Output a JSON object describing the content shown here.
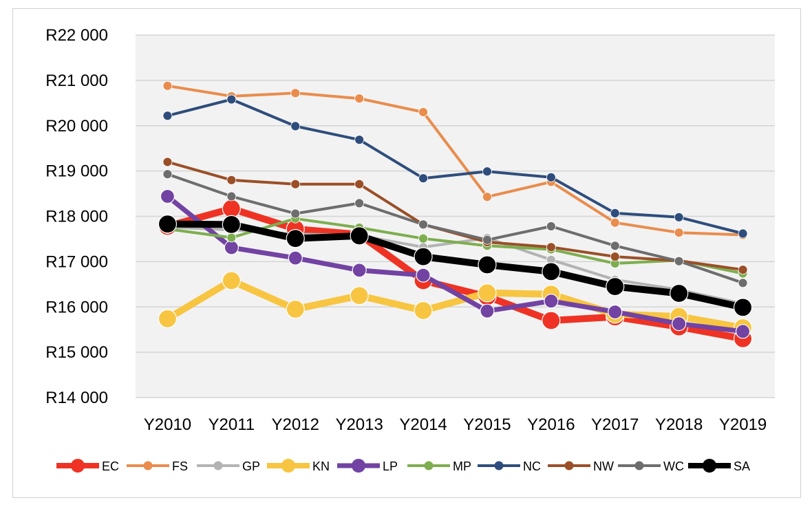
{
  "chart_data": {
    "type": "line",
    "title": "",
    "xlabel": "",
    "ylabel": "",
    "ylim": [
      14000,
      22000
    ],
    "yticks": [
      14000,
      15000,
      16000,
      17000,
      18000,
      19000,
      20000,
      21000,
      22000
    ],
    "ytick_labels": [
      "R14 000",
      "R15 000",
      "R16 000",
      "R17 000",
      "R18 000",
      "R19 000",
      "R20 000",
      "R21 000",
      "R22 000"
    ],
    "categories": [
      "Y2010",
      "Y2011",
      "Y2012",
      "Y2013",
      "Y2014",
      "Y2015",
      "Y2016",
      "Y2017",
      "Y2018",
      "Y2019"
    ],
    "grid": true,
    "legend_position": "bottom",
    "series": [
      {
        "name": "EC",
        "color": "#ee3324",
        "weight": "thick",
        "values": [
          17780,
          18170,
          17720,
          17600,
          16580,
          16230,
          15700,
          15780,
          15560,
          15300
        ]
      },
      {
        "name": "FS",
        "color": "#e98c4d",
        "weight": "thin",
        "values": [
          20880,
          20650,
          20720,
          20600,
          20300,
          18430,
          18760,
          17860,
          17640,
          17590
        ]
      },
      {
        "name": "GP",
        "color": "#b3b3b3",
        "weight": "thin",
        "values": [
          17760,
          17700,
          17610,
          17580,
          17320,
          17520,
          17040,
          16600,
          16380,
          16070
        ]
      },
      {
        "name": "KN",
        "color": "#f7c541",
        "weight": "thick",
        "values": [
          15740,
          16580,
          15950,
          16250,
          15920,
          16310,
          16280,
          15840,
          15790,
          15540
        ]
      },
      {
        "name": "LP",
        "color": "#7243a2",
        "weight": "mid",
        "values": [
          18440,
          17310,
          17080,
          16810,
          16700,
          15910,
          16130,
          15890,
          15630,
          15460
        ]
      },
      {
        "name": "MP",
        "color": "#7dae4f",
        "weight": "thin",
        "values": [
          17720,
          17530,
          17950,
          17750,
          17510,
          17350,
          17270,
          16960,
          17030,
          16740
        ]
      },
      {
        "name": "NC",
        "color": "#2e4d7c",
        "weight": "thin",
        "values": [
          20220,
          20580,
          19990,
          19690,
          18840,
          18990,
          18860,
          18070,
          17980,
          17620
        ]
      },
      {
        "name": "NW",
        "color": "#9a4f27",
        "weight": "thin",
        "values": [
          19200,
          18800,
          18710,
          18710,
          17820,
          17430,
          17320,
          17110,
          17020,
          16820
        ]
      },
      {
        "name": "WC",
        "color": "#6d6d6d",
        "weight": "thin",
        "values": [
          18930,
          18440,
          18060,
          18290,
          17820,
          17480,
          17780,
          17350,
          17010,
          16530
        ]
      },
      {
        "name": "SA",
        "color": "#000000",
        "weight": "bold",
        "values": [
          17830,
          17820,
          17510,
          17570,
          17110,
          16930,
          16780,
          16450,
          16300,
          15990
        ]
      }
    ]
  }
}
